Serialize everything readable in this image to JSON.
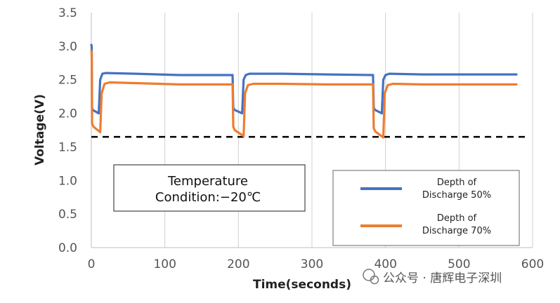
{
  "chart_data": {
    "type": "line",
    "xlabel": "Time(seconds)",
    "ylabel": "Voltage(V)",
    "xlim": [
      0,
      600
    ],
    "ylim": [
      0.0,
      3.5
    ],
    "xticks": [
      "0",
      "100",
      "200",
      "300",
      "400",
      "500",
      "600"
    ],
    "yticks": [
      "0.0",
      "0.5",
      "1.0",
      "1.5",
      "2.0",
      "2.5",
      "3.0",
      "3.5"
    ],
    "grid": "vertical",
    "annotation": {
      "line1": "Temperature",
      "line2": "Condition:−20℃"
    },
    "cutoff_voltage": 1.65,
    "legend": {
      "placement": "lower-right",
      "entries": [
        {
          "line1": "Depth of",
          "line2": "Discharge  50%"
        },
        {
          "line1": "Depth of",
          "line2": "Discharge  70%"
        }
      ]
    },
    "series": [
      {
        "color": "#4472C4",
        "x": [
          0,
          0.5,
          1,
          2,
          10,
          12,
          15,
          20,
          60,
          120,
          150,
          180,
          192,
          193,
          195,
          205,
          207,
          210,
          215,
          260,
          320,
          383,
          384,
          386,
          395,
          397,
          400,
          405,
          450,
          500,
          578
        ],
        "y": [
          3.02,
          3.0,
          2.08,
          2.05,
          2.0,
          2.5,
          2.59,
          2.6,
          2.59,
          2.57,
          2.57,
          2.57,
          2.57,
          2.08,
          2.05,
          2.0,
          2.5,
          2.57,
          2.59,
          2.59,
          2.58,
          2.57,
          2.08,
          2.05,
          2.0,
          2.5,
          2.57,
          2.59,
          2.58,
          2.58,
          2.58
        ]
      },
      {
        "color": "#ED7D31",
        "x": [
          0,
          0.5,
          1,
          3,
          12,
          14,
          18,
          25,
          60,
          120,
          150,
          180,
          192,
          193,
          195,
          207,
          209,
          213,
          220,
          260,
          320,
          383,
          384,
          386,
          397,
          399,
          403,
          410,
          450,
          500,
          578
        ],
        "y": [
          2.93,
          2.9,
          1.85,
          1.8,
          1.72,
          2.3,
          2.44,
          2.46,
          2.45,
          2.43,
          2.43,
          2.43,
          2.43,
          1.8,
          1.75,
          1.66,
          2.3,
          2.42,
          2.44,
          2.44,
          2.43,
          2.43,
          1.78,
          1.73,
          1.64,
          2.3,
          2.42,
          2.44,
          2.43,
          2.43,
          2.43
        ]
      }
    ]
  },
  "watermark": "公众号 · 唐辉电子深圳"
}
